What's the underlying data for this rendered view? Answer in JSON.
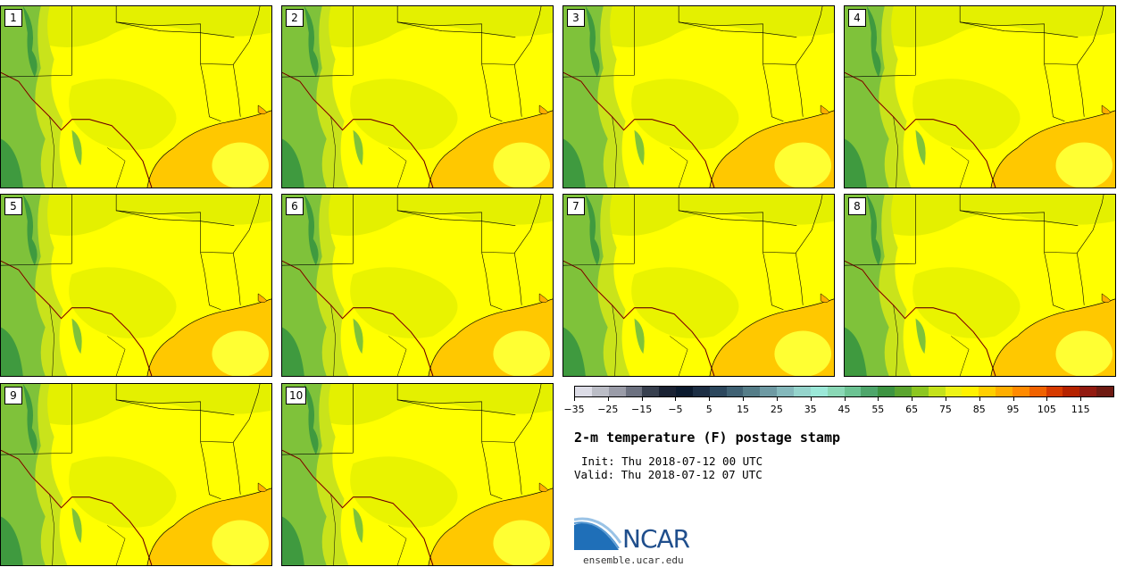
{
  "members": [
    "1",
    "2",
    "3",
    "4",
    "5",
    "6",
    "7",
    "8",
    "9",
    "10"
  ],
  "colorbar": {
    "colors": [
      "#dcdce6",
      "#bbbdc6",
      "#9a9ca8",
      "#6c7180",
      "#38404f",
      "#1a2233",
      "#0b1a2e",
      "#1c2e44",
      "#2c475d",
      "#3f6173",
      "#557d88",
      "#6e9aa3",
      "#84b8bb",
      "#95d4cc",
      "#9be8d8",
      "#8ad8b6",
      "#6cc393",
      "#4ea66b",
      "#3d9442",
      "#5ba52f",
      "#8cc621",
      "#c4e21a",
      "#eef416",
      "#fff200",
      "#ffcf00",
      "#ffae00",
      "#ff8a00",
      "#f06200",
      "#d63a00",
      "#b52200",
      "#921a10",
      "#6e1a12"
    ],
    "tick_labels": [
      "−35",
      "−25",
      "−15",
      "−5",
      "5",
      "15",
      "25",
      "35",
      "45",
      "55",
      "65",
      "75",
      "85",
      "95",
      "105",
      "115"
    ]
  },
  "title": "2-m temperature (F) postage stamp",
  "init_text": "Init: Thu 2018-07-12 00 UTC",
  "valid_text": "Valid: Thu 2018-07-12 07 UTC",
  "logo_text": "NCAR",
  "site": "ensemble.ucar.edu",
  "map_colors": {
    "land_warm": "#ffff00",
    "land_cool": "#e4f000",
    "land_mild": "#c9e31b",
    "high_terrain": "#7fc23a",
    "mountains": "#3f9a3f",
    "gulf": "#ffc800",
    "gulf_inner": "#ffff33",
    "border": "#000000",
    "river_border": "#cc2200"
  }
}
